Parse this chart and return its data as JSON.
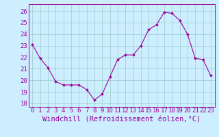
{
  "x": [
    0,
    1,
    2,
    3,
    4,
    5,
    6,
    7,
    8,
    9,
    10,
    11,
    12,
    13,
    14,
    15,
    16,
    17,
    18,
    19,
    20,
    21,
    22,
    23
  ],
  "y": [
    23.1,
    21.9,
    21.1,
    19.9,
    19.6,
    19.6,
    19.6,
    19.2,
    18.3,
    18.8,
    20.3,
    21.8,
    22.2,
    22.2,
    23.0,
    24.4,
    24.8,
    25.9,
    25.8,
    25.2,
    24.0,
    21.9,
    21.8,
    20.4
  ],
  "line_color": "#990099",
  "marker": "D",
  "marker_size": 2.0,
  "background_color": "#cceeff",
  "grid_color": "#99cccc",
  "xlabel": "Windchill (Refroidissement éolien,°C)",
  "xlabel_color": "#990099",
  "ylabel_ticks": [
    18,
    19,
    20,
    21,
    22,
    23,
    24,
    25,
    26
  ],
  "xtick_labels": [
    "0",
    "1",
    "2",
    "3",
    "4",
    "5",
    "6",
    "7",
    "8",
    "9",
    "10",
    "11",
    "12",
    "13",
    "14",
    "15",
    "16",
    "17",
    "18",
    "19",
    "20",
    "21",
    "22",
    "23"
  ],
  "ylim": [
    17.7,
    26.6
  ],
  "xlim": [
    -0.5,
    23.5
  ],
  "tick_color": "#990099",
  "tick_fontsize": 6.5,
  "xlabel_fontsize": 7.5
}
